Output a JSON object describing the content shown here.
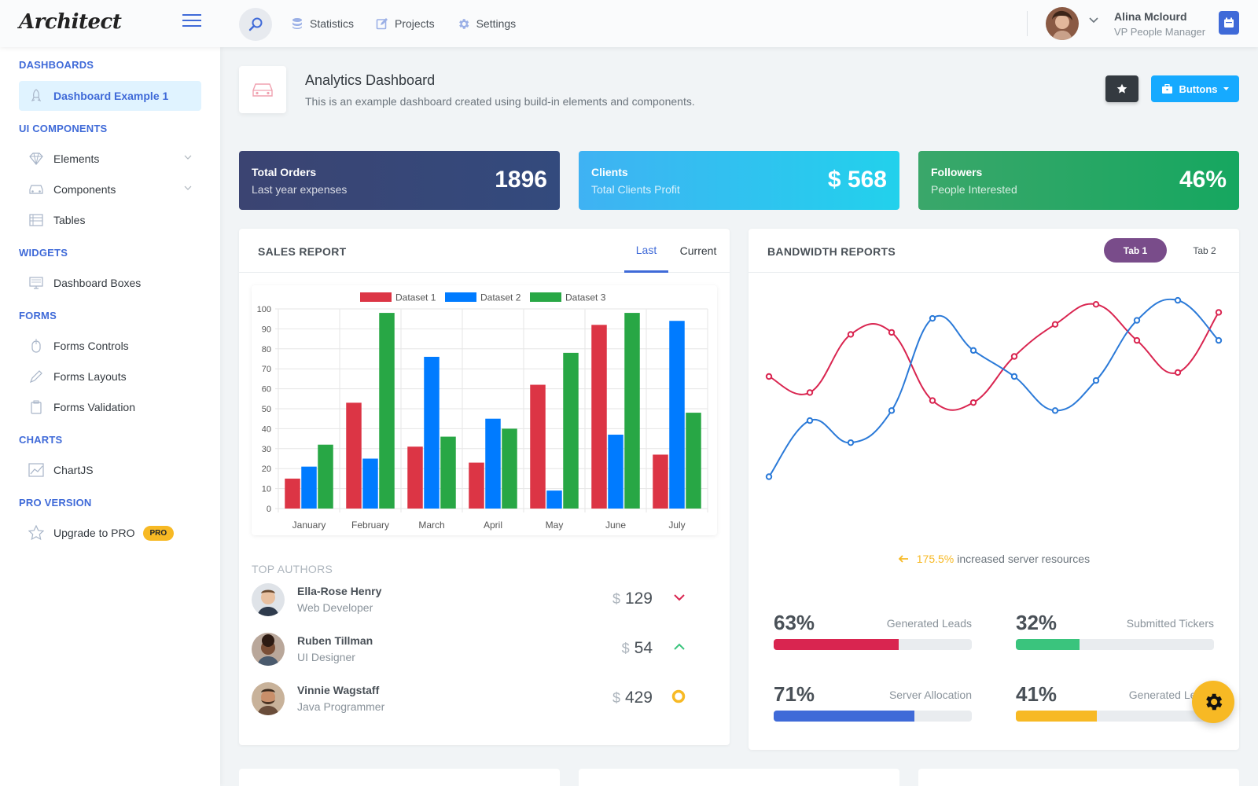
{
  "header": {
    "logo": "Architect",
    "nav": [
      {
        "label": "Statistics",
        "icon": "database-icon"
      },
      {
        "label": "Projects",
        "icon": "edit-icon"
      },
      {
        "label": "Settings",
        "icon": "gear-icon"
      }
    ],
    "user": {
      "name": "Alina Mclourd",
      "role": "VP People Manager"
    }
  },
  "sidebar": {
    "sections": [
      {
        "heading": "DASHBOARDS",
        "items": [
          {
            "label": "Dashboard Example 1",
            "active": true
          }
        ]
      },
      {
        "heading": "UI COMPONENTS",
        "items": [
          {
            "label": "Elements"
          },
          {
            "label": "Components"
          },
          {
            "label": "Tables"
          }
        ]
      },
      {
        "heading": "WIDGETS",
        "items": [
          {
            "label": "Dashboard Boxes"
          }
        ]
      },
      {
        "heading": "FORMS",
        "items": [
          {
            "label": "Forms Controls"
          },
          {
            "label": "Forms Layouts"
          },
          {
            "label": "Forms Validation"
          }
        ]
      },
      {
        "heading": "CHARTS",
        "items": [
          {
            "label": "ChartJS"
          }
        ]
      },
      {
        "heading": "PRO VERSION",
        "items": [
          {
            "label": "Upgrade to PRO",
            "badge": "PRO"
          }
        ]
      }
    ]
  },
  "page": {
    "title": "Analytics Dashboard",
    "subtitle": "This is an example dashboard created using build-in elements and components.",
    "buttons_label": "Buttons"
  },
  "stats": [
    {
      "title": "Total Orders",
      "sub": "Last year expenses",
      "value": "1896"
    },
    {
      "title": "Clients",
      "sub": "Total Clients Profit",
      "value": "$ 568"
    },
    {
      "title": "Followers",
      "sub": "People Interested",
      "value": "46%"
    }
  ],
  "sales": {
    "title": "SALES REPORT",
    "tabs": [
      "Last",
      "Current"
    ],
    "top_authors_label": "TOP AUTHORS",
    "authors": [
      {
        "name": "Ella-Rose Henry",
        "job": "Web Developer",
        "currency": "$",
        "amount": "129",
        "trend": "down"
      },
      {
        "name": "Ruben Tillman",
        "job": "UI Designer",
        "currency": "$",
        "amount": "54",
        "trend": "up"
      },
      {
        "name": "Vinnie Wagstaff",
        "job": "Java Programmer",
        "currency": "$",
        "amount": "429",
        "trend": "neutral"
      }
    ]
  },
  "bandwidth": {
    "title": "BANDWIDTH REPORTS",
    "tabs": [
      "Tab 1",
      "Tab 2"
    ],
    "note_pct": "175.5%",
    "note_text": "increased server resources",
    "progress": [
      {
        "value": "63%",
        "label": "Generated Leads",
        "fraction": 0.63,
        "color": "#d92550"
      },
      {
        "value": "32%",
        "label": "Submitted Tickers",
        "fraction": 0.32,
        "color": "#3ac47d"
      },
      {
        "value": "71%",
        "label": "Server Allocation",
        "fraction": 0.71,
        "color": "#3f6ad8"
      },
      {
        "value": "41%",
        "label": "Generated Leads",
        "fraction": 0.41,
        "color": "#f7b924"
      }
    ]
  },
  "chart_data": [
    {
      "type": "bar",
      "categories": [
        "January",
        "February",
        "March",
        "April",
        "May",
        "June",
        "July"
      ],
      "series": [
        {
          "name": "Dataset 1",
          "color": "#dc3545",
          "values": [
            15,
            53,
            31,
            23,
            62,
            92,
            27
          ]
        },
        {
          "name": "Dataset 2",
          "color": "#007bff",
          "values": [
            21,
            25,
            76,
            45,
            9,
            37,
            94
          ]
        },
        {
          "name": "Dataset 3",
          "color": "#28a745",
          "values": [
            32,
            98,
            36,
            40,
            78,
            98,
            48
          ]
        }
      ],
      "ylim": [
        0,
        100
      ],
      "yticks": [
        0,
        10,
        20,
        30,
        40,
        50,
        60,
        70,
        80,
        90,
        100
      ],
      "legend": "top",
      "grid": true
    },
    {
      "type": "line",
      "x": [
        1,
        2,
        3,
        4,
        5,
        6,
        7,
        8,
        9,
        10,
        11,
        12
      ],
      "series": [
        {
          "color": "#d92550",
          "values": [
            60,
            52,
            81,
            82,
            48,
            47,
            70,
            86,
            96,
            78,
            62,
            92
          ]
        },
        {
          "color": "#2b7ad8",
          "values": [
            10,
            38,
            27,
            43,
            89,
            73,
            60,
            43,
            58,
            88,
            98,
            78
          ]
        }
      ],
      "ylim": [
        0,
        100
      ],
      "grid": false
    }
  ]
}
